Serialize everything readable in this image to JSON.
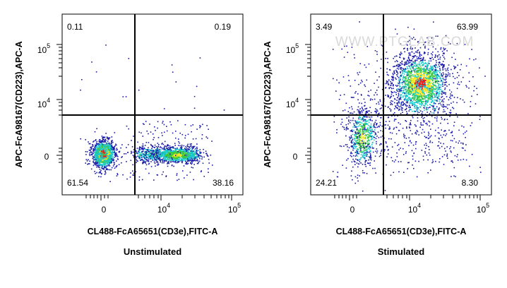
{
  "chart_data": [
    {
      "type": "scatter",
      "subtype": "flow-cytometry-density-dot-plot",
      "xlabel": "CL488-FcA65651(CD3e),FITC-A",
      "ylabel": "APC-FcA98167(CD223),APC-A",
      "x_scale": "biexponential",
      "y_scale": "biexponential",
      "x_ticks": [
        {
          "base": "0",
          "exp": ""
        },
        {
          "base": "10",
          "exp": "4"
        },
        {
          "base": "10",
          "exp": "5"
        }
      ],
      "y_ticks": [
        {
          "base": "0",
          "exp": ""
        },
        {
          "base": "10",
          "exp": "4"
        },
        {
          "base": "10",
          "exp": "5"
        }
      ],
      "quadrants": {
        "upper_left": "0.11",
        "upper_right": "0.19",
        "lower_left": "61.54",
        "lower_right": "38.16"
      },
      "caption": "Unstimulated",
      "populations": [
        {
          "region": "lower_left",
          "center_x": 0,
          "center_y": 0,
          "percent": 61.54
        },
        {
          "region": "lower_right",
          "center_x": 13000,
          "center_y": 0,
          "percent": 38.16
        }
      ]
    },
    {
      "type": "scatter",
      "subtype": "flow-cytometry-density-dot-plot",
      "xlabel": "CL488-FcA65651(CD3e),FITC-A",
      "ylabel": "APC-FcA98167(CD223),APC-A",
      "x_scale": "biexponential",
      "y_scale": "biexponential",
      "x_ticks": [
        {
          "base": "0",
          "exp": ""
        },
        {
          "base": "10",
          "exp": "4"
        },
        {
          "base": "10",
          "exp": "5"
        }
      ],
      "y_ticks": [
        {
          "base": "0",
          "exp": ""
        },
        {
          "base": "10",
          "exp": "4"
        },
        {
          "base": "10",
          "exp": "5"
        }
      ],
      "quadrants": {
        "upper_left": "3.49",
        "upper_right": "63.99",
        "lower_left": "24.21",
        "lower_right": "8.30"
      },
      "caption": "Stimulated",
      "watermark": "WWW.PTGLAB.COM",
      "populations": [
        {
          "region": "upper_right",
          "center_x": 12000,
          "center_y": 20000,
          "percent": 63.99
        },
        {
          "region": "lower_left",
          "center_x": 800,
          "center_y": 800,
          "percent": 24.21
        }
      ]
    }
  ],
  "colors": {
    "density_low": "#1a1aa8",
    "density_mid": "#19c8c8",
    "density_high_1": "#3cc83c",
    "density_high_2": "#f0e61e",
    "density_peak": "#e61e1e",
    "gate_line": "#000000"
  }
}
